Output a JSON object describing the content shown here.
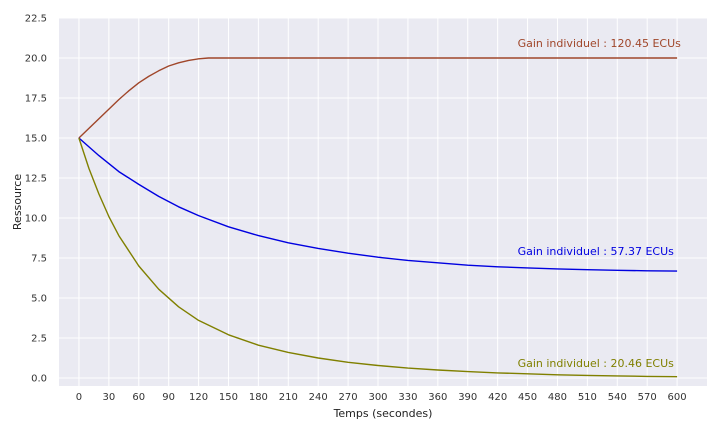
{
  "chart_data": {
    "type": "line",
    "title": "",
    "xlabel": "Temps (secondes)",
    "ylabel": "Ressource",
    "xlim": [
      -20,
      630
    ],
    "ylim": [
      -0.5,
      22.5
    ],
    "xticks": [
      0,
      30,
      60,
      90,
      120,
      150,
      180,
      210,
      240,
      270,
      300,
      330,
      360,
      390,
      420,
      450,
      480,
      510,
      540,
      570,
      600
    ],
    "yticks": [
      0.0,
      2.5,
      5.0,
      7.5,
      10.0,
      12.5,
      15.0,
      17.5,
      20.0,
      22.5
    ],
    "ytick_labels": [
      "0.0",
      "2.5",
      "5.0",
      "7.5",
      "10.0",
      "12.5",
      "15.0",
      "17.5",
      "20.0",
      "22.5"
    ],
    "grid": true,
    "background": "#eaeaf2",
    "series": [
      {
        "color": "#a0462a",
        "x": [
          0,
          10,
          20,
          30,
          40,
          50,
          60,
          70,
          80,
          90,
          100,
          110,
          120,
          130,
          140,
          150,
          200,
          300,
          400,
          500,
          600
        ],
        "y": [
          15.0,
          15.6,
          16.2,
          16.8,
          17.4,
          17.95,
          18.45,
          18.85,
          19.2,
          19.5,
          19.7,
          19.85,
          19.95,
          20.0,
          20.0,
          20.0,
          20.0,
          20.0,
          20.0,
          20.0,
          20.0
        ]
      },
      {
        "color": "#0000e0",
        "x": [
          0,
          20,
          40,
          60,
          80,
          100,
          120,
          150,
          180,
          210,
          240,
          270,
          300,
          330,
          360,
          390,
          420,
          450,
          480,
          510,
          540,
          570,
          600
        ],
        "y": [
          15.0,
          13.9,
          12.9,
          12.1,
          11.35,
          10.7,
          10.15,
          9.45,
          8.9,
          8.45,
          8.1,
          7.8,
          7.55,
          7.35,
          7.2,
          7.05,
          6.95,
          6.88,
          6.82,
          6.77,
          6.73,
          6.7,
          6.68
        ]
      },
      {
        "color": "#808000",
        "x": [
          0,
          10,
          20,
          30,
          40,
          60,
          80,
          100,
          120,
          150,
          180,
          210,
          240,
          270,
          300,
          330,
          360,
          390,
          420,
          450,
          480,
          510,
          540,
          570,
          600
        ],
        "y": [
          15.0,
          13.1,
          11.5,
          10.1,
          8.9,
          7.0,
          5.55,
          4.45,
          3.6,
          2.7,
          2.05,
          1.6,
          1.25,
          0.98,
          0.78,
          0.62,
          0.5,
          0.4,
          0.32,
          0.26,
          0.2,
          0.16,
          0.13,
          0.1,
          0.08
        ]
      }
    ],
    "annotations": [
      {
        "text": "Gain individuel : 120.45 ECUs",
        "x": 440,
        "y": 20.7,
        "color": "#a0462a"
      },
      {
        "text": "Gain individuel : 57.37 ECUs",
        "x": 440,
        "y": 7.7,
        "color": "#0000e0"
      },
      {
        "text": "Gain individuel : 20.46 ECUs",
        "x": 440,
        "y": 0.7,
        "color": "#808000"
      }
    ]
  }
}
